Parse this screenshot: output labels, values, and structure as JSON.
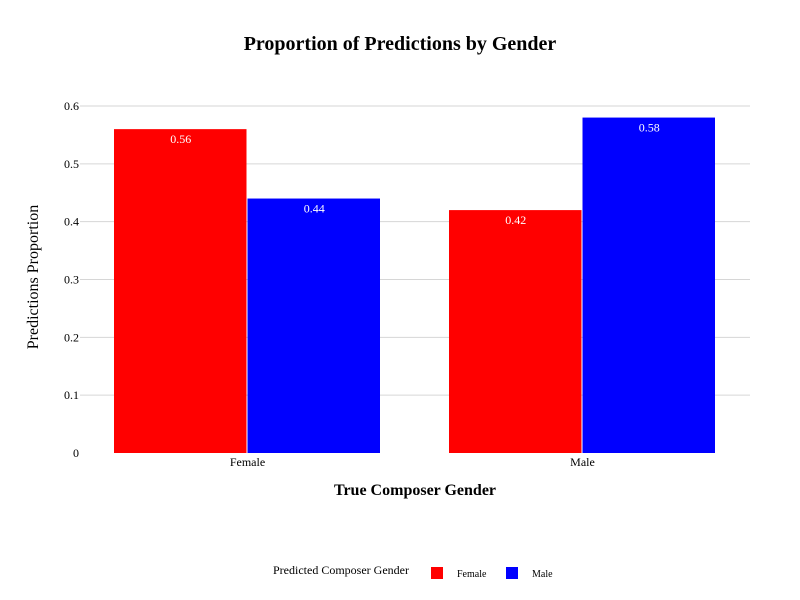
{
  "chart_data": {
    "type": "bar",
    "title": "Proportion of Predictions by Gender",
    "xlabel": "True Composer Gender",
    "ylabel": "Predictions Proportion",
    "categories": [
      "Female",
      "Male"
    ],
    "series": [
      {
        "name": "Female",
        "values": [
          0.56,
          0.42
        ],
        "labels": [
          "0.56",
          "0.42"
        ],
        "color": "#ff0000"
      },
      {
        "name": "Male",
        "values": [
          0.44,
          0.58
        ],
        "labels": [
          "0.44",
          "0.58"
        ],
        "color": "#0000ff"
      }
    ],
    "ylim": [
      0,
      0.6
    ],
    "yticks": [
      {
        "value": 0,
        "label": "0"
      },
      {
        "value": 0.1,
        "label": "0.1"
      },
      {
        "value": 0.2,
        "label": "0.2"
      },
      {
        "value": 0.3,
        "label": "0.3"
      },
      {
        "value": 0.4,
        "label": "0.4"
      },
      {
        "value": 0.5,
        "label": "0.5"
      },
      {
        "value": 0.6,
        "label": "0.6"
      }
    ],
    "grid": true,
    "legend": {
      "title": "Predicted Composer Gender",
      "placement": "bottom-center"
    }
  }
}
